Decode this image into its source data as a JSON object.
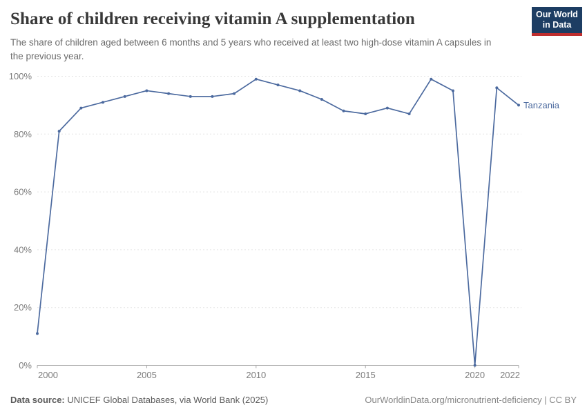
{
  "header": {
    "title": "Share of children receiving vitamin A supplementation",
    "subtitle": "The share of children aged between 6 months and 5 years who received at least two high-dose vitamin A capsules in the previous year.",
    "logo": {
      "line1": "Our World",
      "line2": "in Data",
      "bg_color": "#1d3d63",
      "accent_color": "#bf2e2e"
    }
  },
  "chart_data": {
    "type": "line",
    "title": "Share of children receiving vitamin A supplementation",
    "xlabel": "",
    "ylabel": "",
    "xlim": [
      2000,
      2022
    ],
    "ylim": [
      0,
      100
    ],
    "grid": "horizontal-dashed",
    "legend_position": "end-of-line-label",
    "x_ticks": [
      2000,
      2005,
      2010,
      2015,
      2020,
      2022
    ],
    "y_ticks": [
      0,
      20,
      40,
      60,
      80,
      100
    ],
    "y_tick_suffix": "%",
    "series": [
      {
        "name": "Tanzania",
        "color": "#4c6a9f",
        "x": [
          2000,
          2001,
          2002,
          2003,
          2004,
          2005,
          2006,
          2007,
          2008,
          2009,
          2010,
          2011,
          2012,
          2013,
          2014,
          2015,
          2016,
          2017,
          2018,
          2019,
          2020,
          2021,
          2022
        ],
        "values": [
          11,
          81,
          89,
          91,
          93,
          95,
          94,
          93,
          93,
          94,
          99,
          97,
          95,
          92,
          88,
          87,
          89,
          87,
          99,
          95,
          0,
          96,
          90
        ]
      }
    ],
    "colors": {
      "gridline": "#e3e3e3",
      "axis": "#a9a9a9",
      "tick_label": "#7d7d7d"
    }
  },
  "footer": {
    "source_label": "Data source:",
    "source_text": " UNICEF Global Databases, via World Bank (2025)",
    "link": "OurWorldinData.org/micronutrient-deficiency | CC BY"
  }
}
